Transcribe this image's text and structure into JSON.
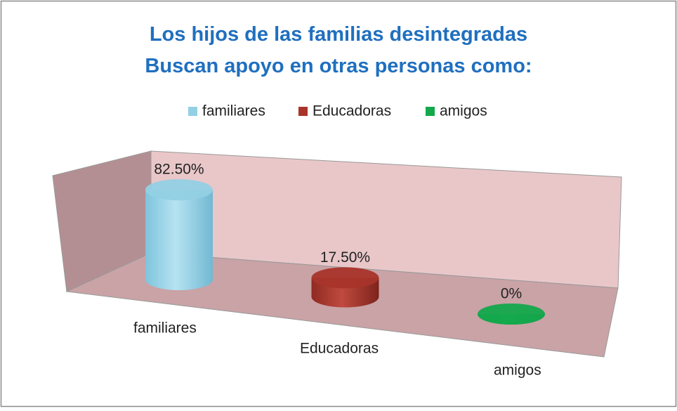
{
  "chart_data": {
    "type": "bar3d",
    "title": "Los hijos de las familias desintegradas Buscan apoyo en otras personas como:",
    "categories": [
      "familiares",
      "Educadoras",
      "amigos"
    ],
    "values": [
      82.5,
      17.5,
      0
    ],
    "value_labels": [
      "82.50%",
      "17.50%",
      "0%"
    ],
    "colors": [
      "#93d0e4",
      "#a8342a",
      "#14a84c"
    ],
    "ylim": [
      0,
      100
    ],
    "legend": "top"
  }
}
